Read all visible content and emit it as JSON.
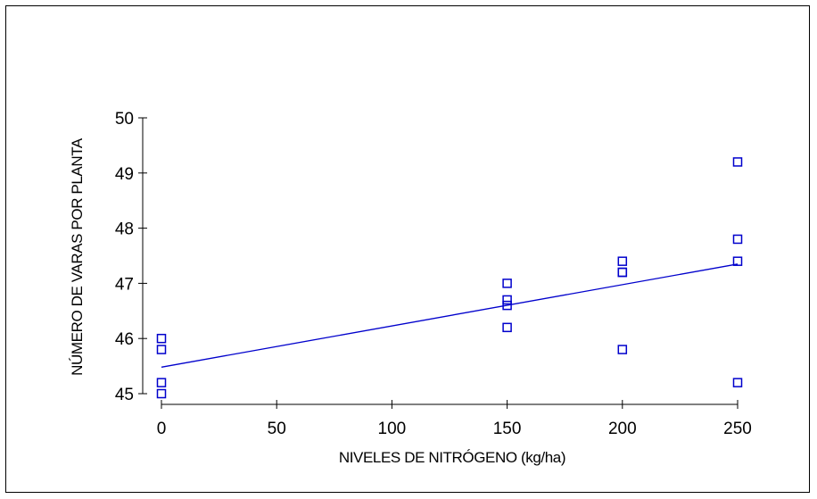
{
  "chart_data": {
    "type": "scatter",
    "title": "",
    "xlabel": "NIVELES DE NITRÓGENO (kg/ha)",
    "ylabel": "NÚMERO DE VARAS POR PLANTA",
    "xlim": [
      0,
      250
    ],
    "ylim": [
      45,
      50
    ],
    "x_ticks": [
      0,
      50,
      100,
      150,
      200,
      250
    ],
    "y_ticks": [
      45,
      46,
      47,
      48,
      49,
      50
    ],
    "grid": false,
    "marker_color": "#0000cc",
    "line_color": "#0000cc",
    "points": [
      {
        "x": 0,
        "y": 45.0
      },
      {
        "x": 0,
        "y": 45.2
      },
      {
        "x": 0,
        "y": 45.8
      },
      {
        "x": 0,
        "y": 46.0
      },
      {
        "x": 150,
        "y": 46.2
      },
      {
        "x": 150,
        "y": 46.6
      },
      {
        "x": 150,
        "y": 46.7
      },
      {
        "x": 150,
        "y": 47.0
      },
      {
        "x": 200,
        "y": 45.8
      },
      {
        "x": 200,
        "y": 47.2
      },
      {
        "x": 200,
        "y": 47.2
      },
      {
        "x": 200,
        "y": 47.4
      },
      {
        "x": 250,
        "y": 45.2
      },
      {
        "x": 250,
        "y": 47.4
      },
      {
        "x": 250,
        "y": 47.8
      },
      {
        "x": 250,
        "y": 49.2
      }
    ],
    "fitted_line": [
      {
        "x": 0,
        "y": 45.48
      },
      {
        "x": 250,
        "y": 47.35
      }
    ]
  }
}
